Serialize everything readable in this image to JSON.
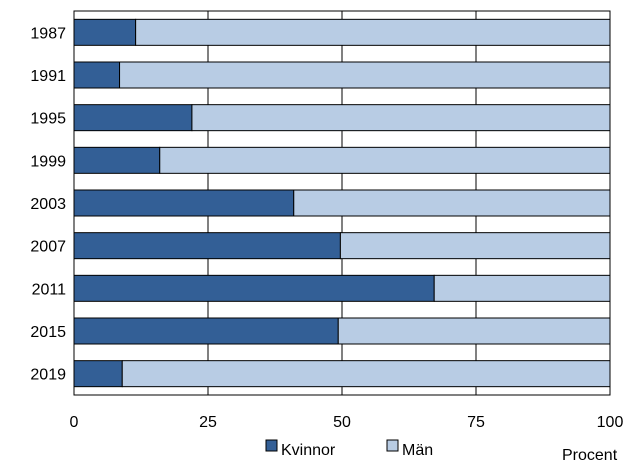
{
  "chart_data": {
    "type": "bar",
    "orientation": "horizontal",
    "stacked": true,
    "categories": [
      "1987",
      "1991",
      "1995",
      "1999",
      "2003",
      "2007",
      "2011",
      "2015",
      "2019"
    ],
    "series": [
      {
        "name": "Kvinnor",
        "color": "#335f96",
        "values": [
          11.5,
          8.5,
          22,
          16,
          41,
          49.7,
          67.2,
          49.3,
          9
        ]
      },
      {
        "name": "Män",
        "color": "#b8cce4",
        "values": [
          88.5,
          91.5,
          78,
          84,
          59,
          50.3,
          32.8,
          50.7,
          91
        ]
      }
    ],
    "xticks": [
      "0",
      "25",
      "50",
      "75",
      "100"
    ],
    "xlim": [
      0,
      100
    ],
    "xlabel": "Procent",
    "ylabel": "",
    "title": "",
    "grid": "vertical",
    "legend_position": "bottom"
  }
}
